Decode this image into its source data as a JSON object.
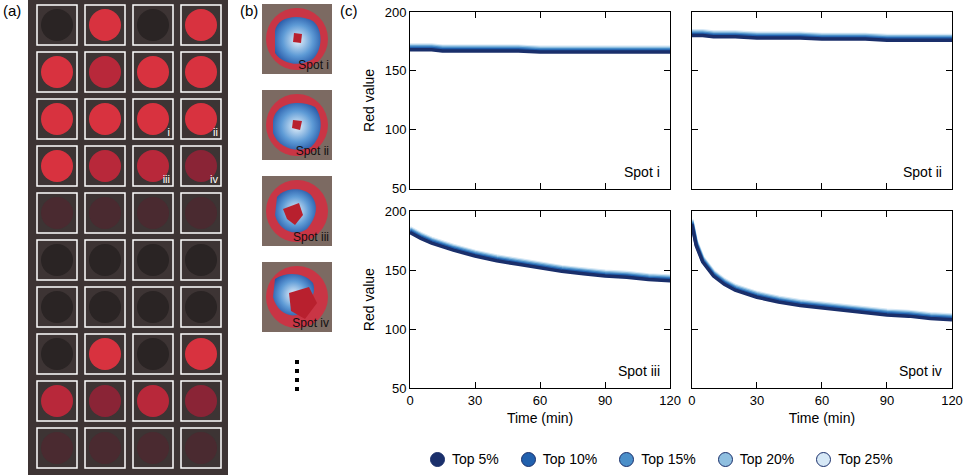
{
  "panels": {
    "a": {
      "label": "(a)",
      "spot_marks": [
        "i",
        "ii",
        "iii",
        "iv"
      ]
    },
    "b": {
      "label": "(b)",
      "spots": [
        "Spot i",
        "Spot ii",
        "Spot iii",
        "Spot iv"
      ]
    },
    "c": {
      "label": "(c)"
    }
  },
  "chart_data": [
    {
      "type": "line",
      "annotation": "Spot i",
      "ylabel": "Red value",
      "tick_labels": "y",
      "legend": "bottom",
      "x": [
        0,
        2,
        5,
        10,
        15,
        20,
        30,
        40,
        50,
        60,
        70,
        80,
        90,
        100,
        110,
        120
      ],
      "xlim": [
        0,
        120
      ],
      "xticks": [
        0,
        30,
        60,
        90,
        120
      ],
      "ylim": [
        50,
        200
      ],
      "yticks": [
        50,
        100,
        150,
        200
      ],
      "series": [
        {
          "name": "Top 5%",
          "color": "#1a2f6b",
          "values": [
            168,
            168,
            168,
            168,
            167,
            167,
            167,
            167,
            167,
            166,
            166,
            166,
            166,
            166,
            166,
            166
          ]
        },
        {
          "name": "Top 10%",
          "color": "#2160ad",
          "values": [
            169,
            169,
            169,
            169,
            168,
            168,
            168,
            168,
            168,
            167,
            167,
            167,
            167,
            167,
            167,
            167
          ]
        },
        {
          "name": "Top 15%",
          "color": "#4b8fc9",
          "values": [
            170,
            170,
            170,
            170,
            169,
            169,
            169,
            169,
            169,
            168,
            168,
            168,
            168,
            168,
            168,
            168
          ]
        },
        {
          "name": "Top 20%",
          "color": "#8fbfe0",
          "values": [
            171,
            171,
            171,
            171,
            170,
            170,
            170,
            170,
            170,
            169,
            169,
            169,
            169,
            169,
            169,
            169
          ]
        },
        {
          "name": "Top 25%",
          "color": "#d6e8f6",
          "values": [
            172,
            172,
            172,
            172,
            171,
            171,
            171,
            171,
            171,
            170,
            170,
            170,
            170,
            170,
            170,
            170
          ]
        }
      ]
    },
    {
      "type": "line",
      "annotation": "Spot ii",
      "tick_labels": false,
      "x": [
        0,
        2,
        5,
        10,
        15,
        20,
        30,
        40,
        50,
        60,
        70,
        80,
        90,
        100,
        110,
        120
      ],
      "xlim": [
        0,
        120
      ],
      "xticks": [
        0,
        30,
        60,
        90,
        120
      ],
      "ylim": [
        50,
        200
      ],
      "yticks": [
        50,
        100,
        150,
        200
      ],
      "series": [
        {
          "name": "Top 5%",
          "color": "#1a2f6b",
          "values": [
            180,
            180,
            180,
            179,
            179,
            179,
            178,
            178,
            178,
            177,
            177,
            177,
            176,
            176,
            176,
            176
          ]
        },
        {
          "name": "Top 10%",
          "color": "#2160ad",
          "values": [
            181,
            181,
            181,
            180,
            180,
            180,
            179,
            179,
            179,
            178,
            178,
            178,
            177,
            177,
            177,
            177
          ]
        },
        {
          "name": "Top 15%",
          "color": "#4b8fc9",
          "values": [
            182,
            182,
            182,
            181,
            181,
            181,
            180,
            180,
            180,
            179,
            179,
            179,
            178,
            178,
            178,
            178
          ]
        },
        {
          "name": "Top 20%",
          "color": "#8fbfe0",
          "values": [
            183,
            183,
            183,
            182,
            182,
            182,
            181,
            181,
            181,
            180,
            180,
            180,
            179,
            179,
            179,
            179
          ]
        },
        {
          "name": "Top 25%",
          "color": "#d6e8f6",
          "values": [
            184,
            184,
            184,
            183,
            183,
            183,
            182,
            182,
            182,
            181,
            181,
            181,
            180,
            180,
            180,
            180
          ]
        }
      ]
    },
    {
      "type": "line",
      "annotation": "Spot iii",
      "ylabel": "Red value",
      "xlabel": "Time (min)",
      "tick_labels": true,
      "x": [
        0,
        2,
        5,
        10,
        15,
        20,
        30,
        40,
        50,
        60,
        70,
        80,
        90,
        100,
        110,
        120
      ],
      "xlim": [
        0,
        120
      ],
      "xticks": [
        0,
        30,
        60,
        90,
        120
      ],
      "ylim": [
        50,
        200
      ],
      "yticks": [
        50,
        100,
        150,
        200
      ],
      "series": [
        {
          "name": "Top 5%",
          "color": "#1a2f6b",
          "values": [
            182,
            180,
            177,
            173,
            170,
            167,
            162,
            158,
            155,
            152,
            149,
            147,
            145,
            144,
            142,
            141
          ]
        },
        {
          "name": "Top 10%",
          "color": "#2160ad",
          "values": [
            183,
            181,
            178,
            174,
            171,
            168,
            163,
            159,
            156,
            153,
            150,
            148,
            146,
            145,
            143,
            142
          ]
        },
        {
          "name": "Top 15%",
          "color": "#4b8fc9",
          "values": [
            184,
            182,
            179,
            175,
            172,
            169,
            164,
            160,
            157,
            154,
            151,
            149,
            147,
            146,
            144,
            143
          ]
        },
        {
          "name": "Top 20%",
          "color": "#8fbfe0",
          "values": [
            185,
            183,
            180,
            176,
            173,
            170,
            165,
            161,
            158,
            155,
            152,
            150,
            148,
            147,
            145,
            144
          ]
        },
        {
          "name": "Top 25%",
          "color": "#d6e8f6",
          "values": [
            186,
            184,
            181,
            177,
            174,
            171,
            166,
            162,
            159,
            156,
            153,
            151,
            149,
            148,
            146,
            145
          ]
        }
      ]
    },
    {
      "type": "line",
      "annotation": "Spot iv",
      "xlabel": "Time (min)",
      "tick_labels": "x",
      "x": [
        0,
        2,
        5,
        10,
        15,
        20,
        30,
        40,
        50,
        60,
        70,
        80,
        90,
        100,
        110,
        120
      ],
      "xlim": [
        0,
        120
      ],
      "xticks": [
        0,
        30,
        60,
        90,
        120
      ],
      "ylim": [
        50,
        200
      ],
      "yticks": [
        50,
        100,
        150,
        200
      ],
      "series": [
        {
          "name": "Top 5%",
          "color": "#1a2f6b",
          "values": [
            189,
            171,
            157,
            145,
            138,
            133,
            127,
            123,
            120,
            118,
            116,
            114,
            112,
            111,
            109,
            108
          ]
        },
        {
          "name": "Top 10%",
          "color": "#2160ad",
          "values": [
            190,
            172,
            158,
            146,
            139,
            134,
            128,
            124,
            121,
            119,
            117,
            115,
            113,
            112,
            110,
            109
          ]
        },
        {
          "name": "Top 15%",
          "color": "#4b8fc9",
          "values": [
            191,
            173,
            159,
            147,
            140,
            135,
            129,
            125,
            122,
            120,
            118,
            116,
            114,
            113,
            111,
            110
          ]
        },
        {
          "name": "Top 20%",
          "color": "#8fbfe0",
          "values": [
            192,
            174,
            160,
            148,
            141,
            136,
            130,
            126,
            123,
            121,
            119,
            117,
            115,
            114,
            112,
            111
          ]
        },
        {
          "name": "Top 25%",
          "color": "#d6e8f6",
          "values": [
            193,
            175,
            161,
            149,
            142,
            137,
            131,
            127,
            124,
            122,
            120,
            118,
            116,
            115,
            113,
            112
          ]
        }
      ]
    }
  ]
}
